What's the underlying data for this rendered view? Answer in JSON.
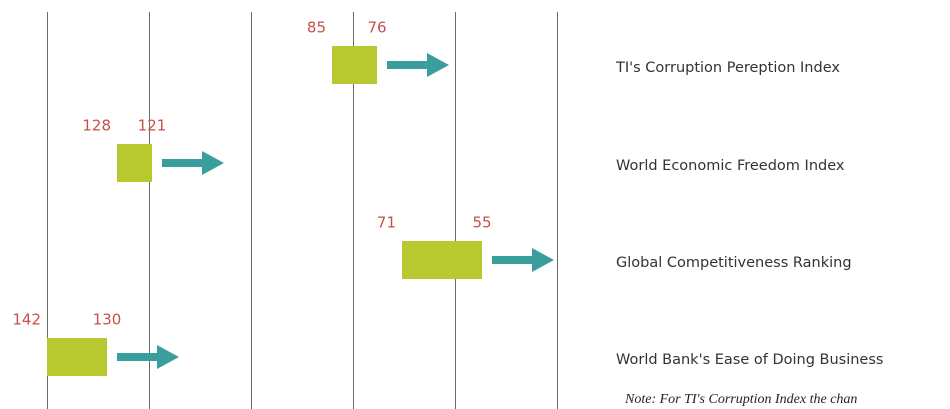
{
  "chart_data": {
    "type": "range-arrow",
    "categories": [
      "TI's Corruption Pereption Index",
      "World Economic Freedom Index",
      "Global Competitiveness Ranking",
      "World Bank's Ease of Doing Business"
    ],
    "start": [
      85,
      128,
      71,
      142
    ],
    "end": [
      76,
      121,
      55,
      130
    ],
    "xlim": [
      142,
      40
    ],
    "box_color": "#b8c930",
    "arrow_color": "#3a9f9c",
    "note": "Note: For TI's Corruption Index the chan"
  }
}
